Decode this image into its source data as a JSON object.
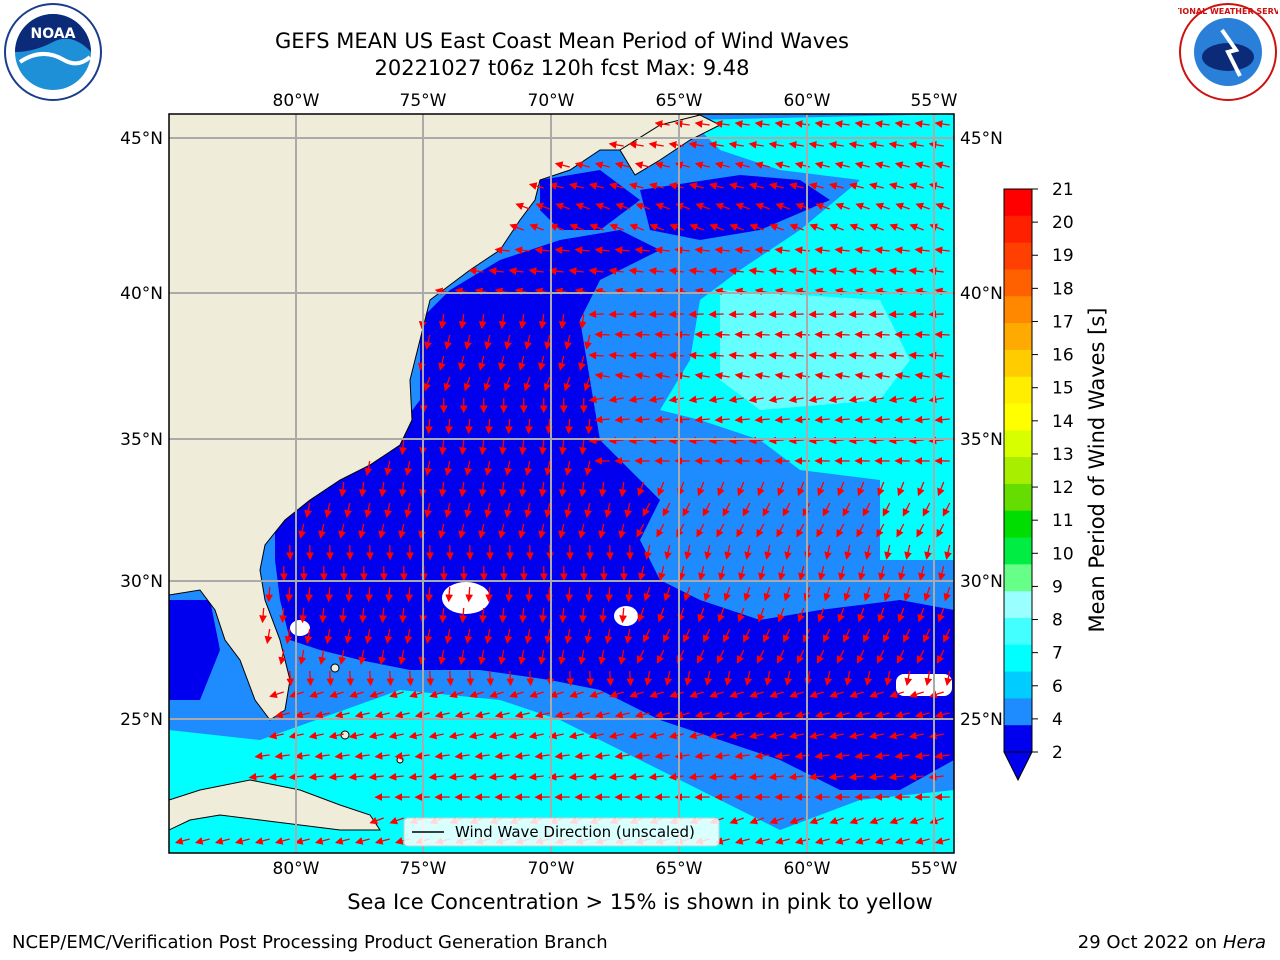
{
  "title": {
    "line1": "GEFS MEAN US East Coast Mean Period of Wind Waves",
    "line2": "20221027 t06z 120h fcst   Max: 9.48"
  },
  "logos": {
    "left": {
      "name": "noaa-logo",
      "text": "NOAA"
    },
    "right": {
      "name": "nws-logo",
      "text": "NATIONAL WEATHER SERVICE"
    }
  },
  "map": {
    "lon_labels": [
      "80°W",
      "75°W",
      "70°W",
      "65°W",
      "60°W",
      "55°W"
    ],
    "lat_labels": [
      "45°N",
      "40°N",
      "35°N",
      "30°N",
      "25°N"
    ],
    "legend_label": "Wind Wave Direction (unscaled)",
    "colors": {
      "land": "#efedd9",
      "c2_4": "#0000ee",
      "c4_6": "#1e8cff",
      "c6_8": "#00ffff",
      "c8_9": "#66ffff",
      "arrow": "#ff0000",
      "grid": "#aaaaaa"
    }
  },
  "colorbar": {
    "label": "Mean Period of Wind Waves [s]",
    "ticks": [
      "21",
      "20",
      "19",
      "18",
      "17",
      "16",
      "15",
      "14",
      "13",
      "12",
      "11",
      "10",
      "9",
      "8",
      "7",
      "6",
      "4",
      "2"
    ],
    "colors": [
      "#ff0000",
      "#ff2000",
      "#ff4000",
      "#ff6000",
      "#ff8800",
      "#ffaa00",
      "#ffcc00",
      "#ffee00",
      "#ffff00",
      "#d8ff00",
      "#a8ee00",
      "#66dd00",
      "#00dd00",
      "#00ee44",
      "#66ff88",
      "#99ffff",
      "#44ffff",
      "#00ffff",
      "#00ccff",
      "#1e8cff",
      "#0000ee"
    ]
  },
  "note": "Sea Ice Concentration > 15% is shown in pink to yellow",
  "footer": {
    "left": "NCEP/EMC/Verification Post Processing Product Generation Branch",
    "right_date": "29 Oct 2022 on ",
    "right_host": "Hera"
  }
}
